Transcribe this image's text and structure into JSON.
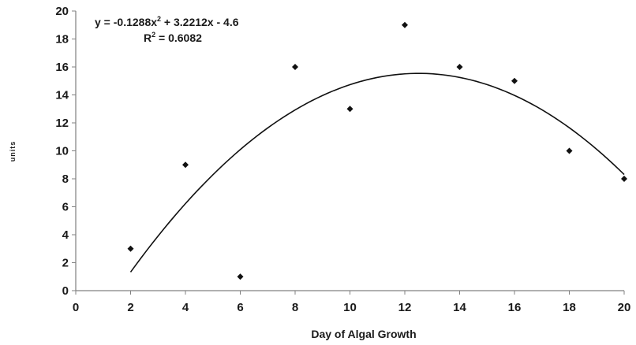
{
  "chart_data": {
    "type": "scatter",
    "xlabel": "Day of Algal Growth",
    "ylabel": "units",
    "xlim": [
      0,
      20
    ],
    "ylim": [
      0,
      20
    ],
    "xticks": [
      "0",
      "2",
      "4",
      "6",
      "8",
      "10",
      "12",
      "14",
      "16",
      "18",
      "20"
    ],
    "yticks": [
      "0",
      "2",
      "4",
      "6",
      "8",
      "10",
      "12",
      "14",
      "16",
      "18",
      "20"
    ],
    "points": [
      {
        "x": 2,
        "y": 3
      },
      {
        "x": 4,
        "y": 9
      },
      {
        "x": 6,
        "y": 1
      },
      {
        "x": 8,
        "y": 16
      },
      {
        "x": 10,
        "y": 13
      },
      {
        "x": 12,
        "y": 19
      },
      {
        "x": 14,
        "y": 16
      },
      {
        "x": 16,
        "y": 15
      },
      {
        "x": 18,
        "y": 10
      },
      {
        "x": 20,
        "y": 8
      }
    ],
    "trendline": {
      "type": "polynomial",
      "order": 2,
      "coefficients": {
        "a": -0.1288,
        "b": 3.2212,
        "c": -4.6
      },
      "x_range": [
        2,
        20
      ],
      "equation_prefix": "y = -0.1288x",
      "equation_suffix": " + 3.2212x - 4.6",
      "r2_prefix": "R",
      "r2_suffix": " = 0.6082",
      "superscript": "2"
    },
    "grid": false,
    "legend": "none",
    "colors": {
      "marker": "#111111",
      "trendline": "#111111",
      "axis": "#808080"
    }
  }
}
